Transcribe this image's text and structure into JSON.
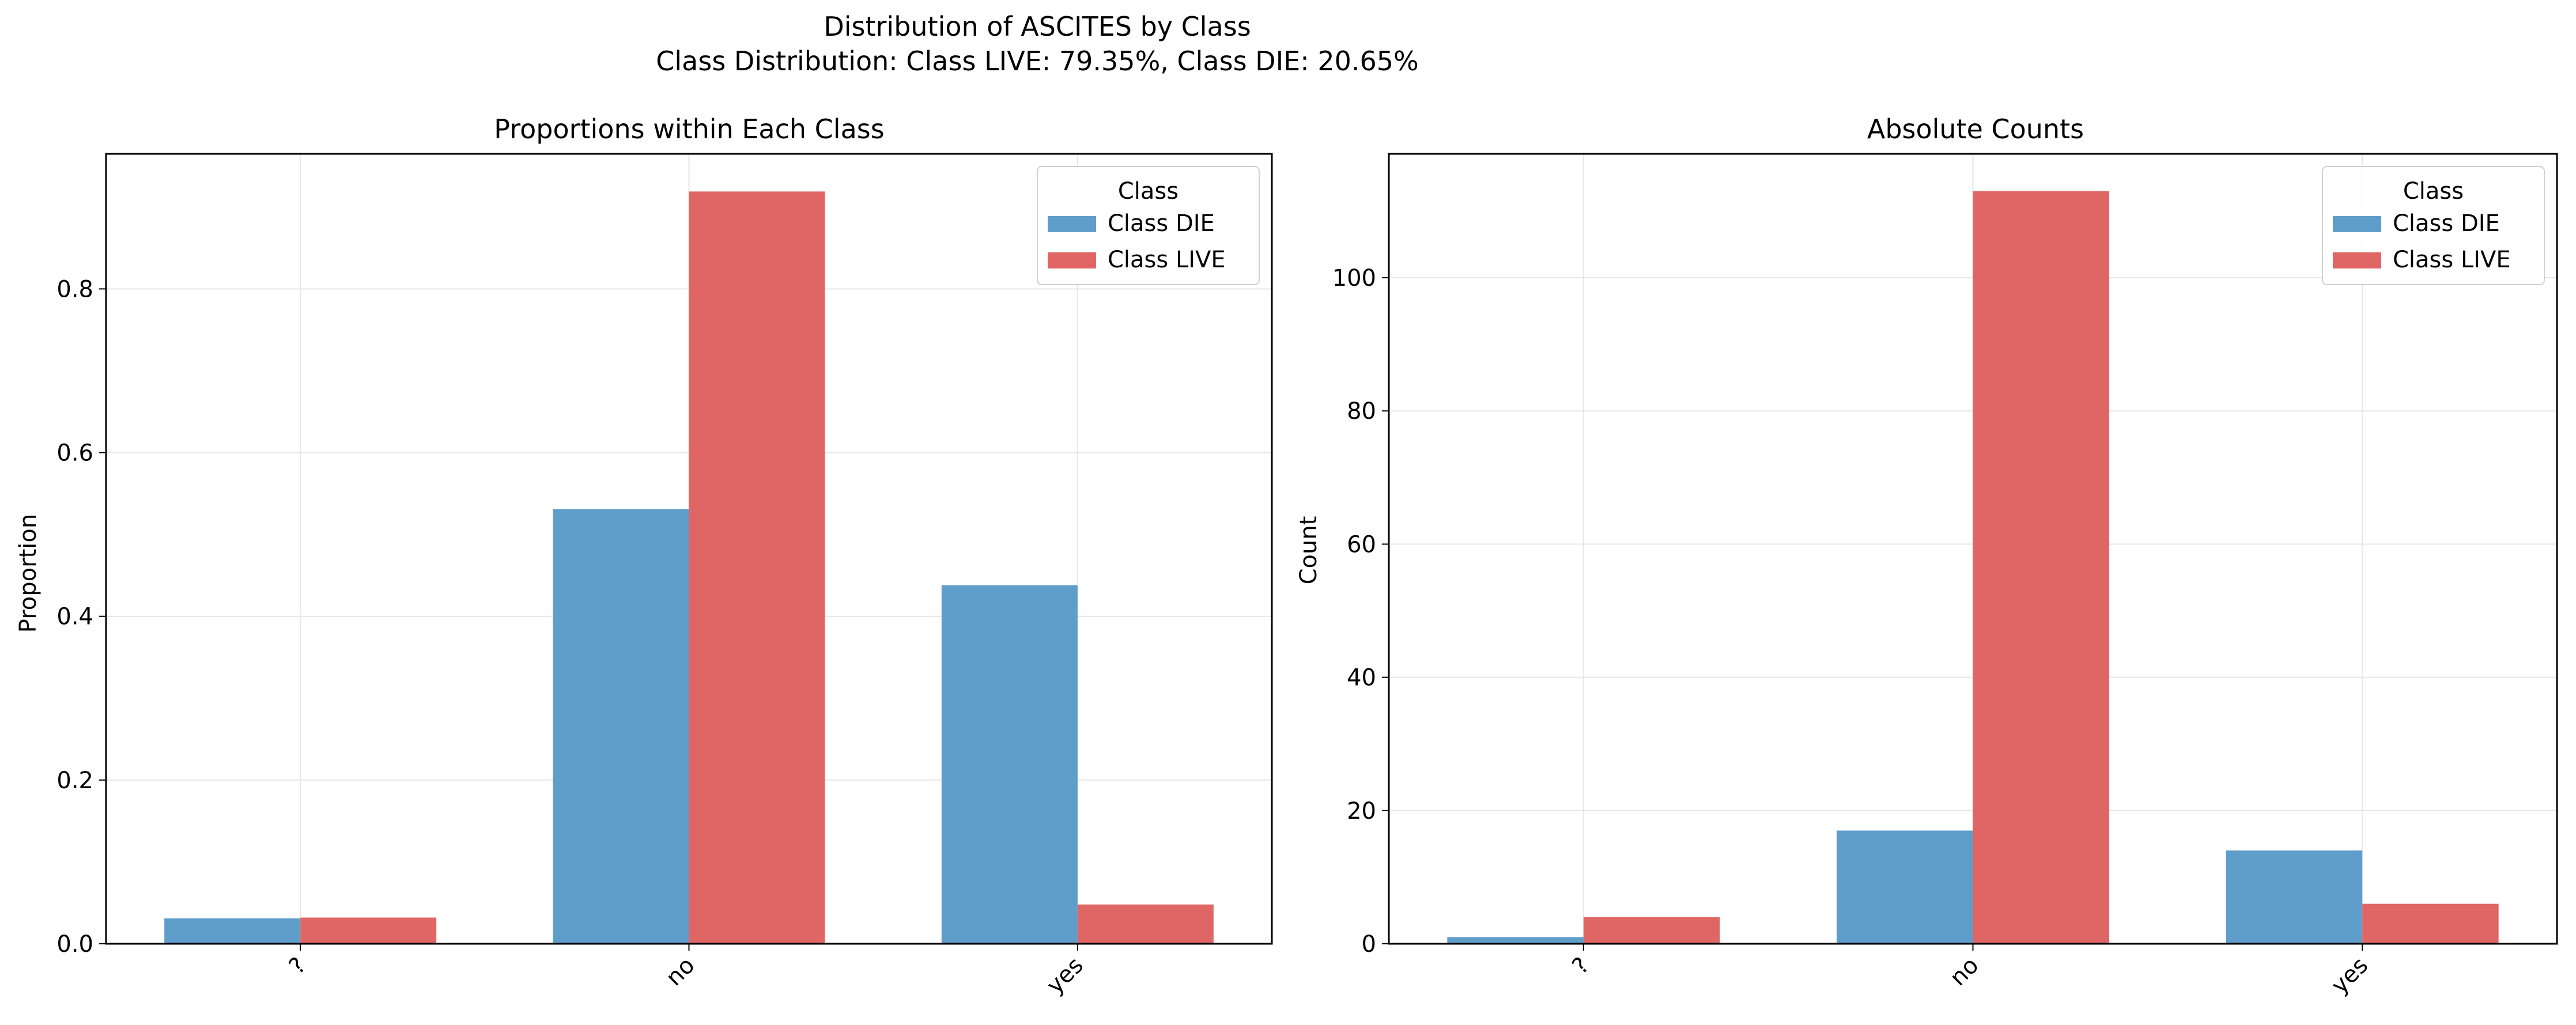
{
  "figure": {
    "title": "Distribution of ASCITES by Class",
    "subtitle": "Class Distribution: Class LIVE: 79.35%, Class DIE: 20.65%"
  },
  "colors": {
    "die": "#5f9dcb",
    "live": "#e06666",
    "grid": "#e6e6e6"
  },
  "chart_data": [
    {
      "type": "bar",
      "title": "Proportions within Each Class",
      "xlabel": "",
      "ylabel": "Proportion",
      "categories": [
        "?",
        "no",
        "yes"
      ],
      "series": [
        {
          "name": "Class DIE",
          "values": [
            0.031,
            0.531,
            0.438
          ]
        },
        {
          "name": "Class LIVE",
          "values": [
            0.032,
            0.919,
            0.048
          ]
        }
      ],
      "ylim": [
        0,
        0.965
      ],
      "yticks": [
        "0.0",
        "0.2",
        "0.4",
        "0.6",
        "0.8"
      ],
      "legend_title": "Class",
      "legend": "top-right",
      "grid": true
    },
    {
      "type": "bar",
      "title": "Absolute Counts",
      "xlabel": "",
      "ylabel": "Count",
      "categories": [
        "?",
        "no",
        "yes"
      ],
      "series": [
        {
          "name": "Class DIE",
          "values": [
            1,
            17,
            14
          ]
        },
        {
          "name": "Class LIVE",
          "values": [
            4,
            113,
            6
          ]
        }
      ],
      "ylim": [
        0,
        118.6
      ],
      "yticks": [
        "0",
        "20",
        "40",
        "60",
        "80",
        "100"
      ],
      "legend_title": "Class",
      "legend": "top-right",
      "grid": true
    }
  ]
}
